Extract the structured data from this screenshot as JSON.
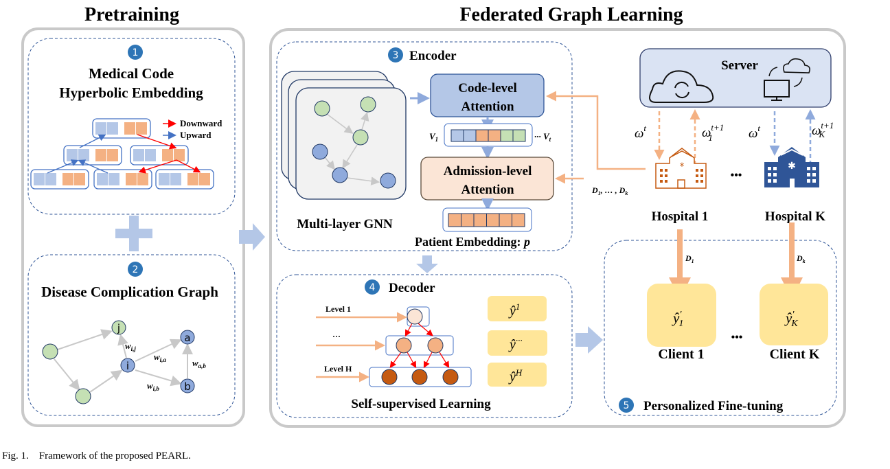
{
  "titles": {
    "pretraining": "Pretraining",
    "federated": "Federated Graph Learning"
  },
  "step_numbers": [
    "1",
    "2",
    "3",
    "4",
    "5"
  ],
  "hyperbolic": {
    "title_line1": "Medical Code",
    "title_line2": "Hyperbolic Embedding",
    "legend": [
      "Downward",
      "Upward"
    ]
  },
  "complication_graph": {
    "title": "Disease Complication Graph",
    "node_labels": [
      "j",
      "i",
      "a",
      "b"
    ],
    "edge_labels": [
      {
        "base": "w",
        "sub": "i,j"
      },
      {
        "base": "w",
        "sub": "i,a"
      },
      {
        "base": "w",
        "sub": "a,b"
      },
      {
        "base": "w",
        "sub": "i,b"
      }
    ]
  },
  "encoder": {
    "title": "Encoder",
    "gnn_label": "Multi-layer GNN",
    "code_attention": [
      "Code-level",
      "Attention"
    ],
    "admission_attention": [
      "Admission-level",
      "Attention"
    ],
    "visit_first": {
      "base": "V",
      "sub": "1"
    },
    "visit_last": {
      "prefix": "··· ",
      "base": "V",
      "sub": "t"
    },
    "patient_embedding": "Patient Embedding: ",
    "patient_symbol": "p"
  },
  "decoder": {
    "title": "Decoder",
    "levels": [
      "Level 1",
      "···",
      "Level H"
    ],
    "outputs": [
      {
        "base": "ŷ",
        "sup": "1"
      },
      {
        "base": "ŷ",
        "sup": "···"
      },
      {
        "base": "ŷ",
        "sup": "H"
      }
    ],
    "footer": "Self-supervised Learning"
  },
  "federated": {
    "server_label": "Server",
    "data_label": {
      "parts": [
        {
          "base": "D",
          "sub": "1"
        },
        {
          "sep": ", … , "
        },
        {
          "base": "D",
          "sub": "k"
        }
      ]
    },
    "weights": [
      {
        "base": "ω",
        "sup": "t",
        "sub": ""
      },
      {
        "base": "ω",
        "sup": "t+1",
        "sub": "1"
      },
      {
        "base": "ω",
        "sup": "t",
        "sub": ""
      },
      {
        "base": "ω",
        "sup": "t+1",
        "sub": "K"
      }
    ],
    "hospitals": [
      "Hospital 1",
      "Hospital K"
    ],
    "ellipsis": "•••",
    "client_data": [
      {
        "base": "D",
        "sub": "1"
      },
      {
        "base": "D",
        "sub": "k"
      }
    ],
    "clients": [
      {
        "label": "Client 1",
        "pred_base": "ŷ",
        "pred_sup": "′",
        "pred_sub": "1"
      },
      {
        "label": "Client K",
        "pred_base": "ŷ",
        "pred_sup": "′",
        "pred_sub": "K"
      }
    ],
    "finetune_title": "Personalized Fine-tuning"
  },
  "caption": "Fig. 1.    Framework of the proposed PEARL.",
  "colors": {
    "step_badge": "#2e75b6",
    "blue_fill": "#b4c7e7",
    "orange_fill": "#f4b183",
    "green_fill": "#c5e0b4",
    "node_blue": "#8faadc",
    "yellow": "#ffe699",
    "server_fill": "#dae3f3",
    "hospital_orange": "#c55a11",
    "hospital_blue": "#2f5597",
    "panel_gray": "#c9c9c9",
    "dashed_border": "#2f5597",
    "red_arrow": "#ff0000"
  }
}
